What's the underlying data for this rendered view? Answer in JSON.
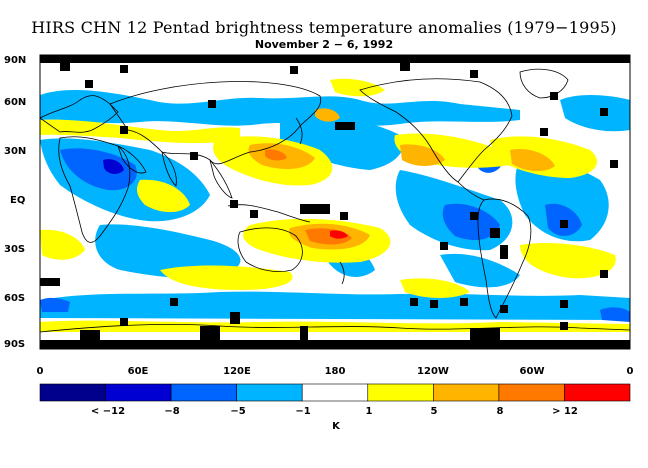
{
  "title": "HIRS CHN 12 Pentad brightness temperature anomalies (1979−1995)",
  "subtitle": "November 2 − 6, 1992",
  "map": {
    "lat_labels": [
      "90N",
      "60N",
      "30N",
      "EQ",
      "30S",
      "60S",
      "90S"
    ],
    "lat_values": [
      90,
      60,
      30,
      0,
      -30,
      -60,
      -90
    ],
    "lon_labels": [
      "0",
      "60E",
      "120E",
      "180",
      "120W",
      "60W",
      "0"
    ],
    "lon_values": [
      0,
      60,
      120,
      180,
      240,
      300,
      360
    ]
  },
  "colorbar": {
    "unit": "K",
    "labels": [
      "< −12",
      "−8",
      "−5",
      "−1",
      "1",
      "5",
      "8",
      "> 12"
    ],
    "colors": [
      "#00008c",
      "#0000d2",
      "#0064ff",
      "#00b4ff",
      "#ffffff",
      "#ffff00",
      "#ffb400",
      "#ff7800",
      "#ff0000"
    ]
  },
  "colors": {
    "missing": "#000000",
    "coast": "#000000"
  }
}
